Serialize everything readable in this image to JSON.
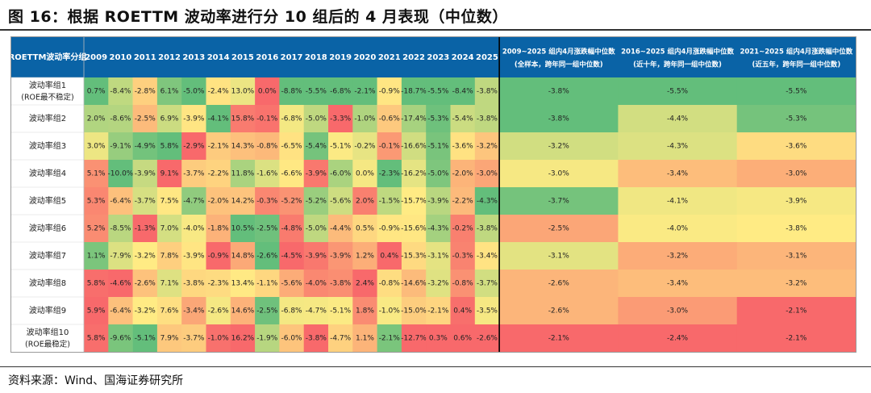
{
  "title": "图 16：根据 ROETTM 波动率进行分 10 组后的 4 月表现（中位数）",
  "source": "资料来源：Wind、国海证券研究所",
  "chart_data": {
    "type": "heatmap",
    "corner_label": "ROETTM波动率分组",
    "years": [
      "2009",
      "2010",
      "2011",
      "2012",
      "2013",
      "2014",
      "2015",
      "2016",
      "2017",
      "2018",
      "2019",
      "2020",
      "2021",
      "2022",
      "2023",
      "2024",
      "2025"
    ],
    "summary_headers": [
      {
        "line1": "2009~2025 组内4月涨跌幅中位数",
        "line2": "(全样本，跨年同一组中位数)"
      },
      {
        "line1": "2016~2025 组内4月涨跌幅中位数",
        "line2": "(近十年，跨年同一组中位数)"
      },
      {
        "line1": "2021~2025 组内4月涨跌幅中位数",
        "line2": "(近五年，跨年同一组中位数)"
      }
    ],
    "rows": [
      {
        "label": "波动率组1",
        "sublabel": "(ROE最不稳定)",
        "values": [
          "0.7%",
          "-8.4%",
          "-2.8%",
          "6.1%",
          "-5.0%",
          "-2.4%",
          "13.0%",
          "0.0%",
          "-8.8%",
          "-5.5%",
          "-6.8%",
          "-2.1%",
          "-0.9%",
          "-18.7%",
          "-5.5%",
          "-8.4%",
          "-3.8%"
        ],
        "summary": [
          "-3.8%",
          "-5.5%",
          "-5.5%"
        ]
      },
      {
        "label": "波动率组2",
        "sublabel": "",
        "values": [
          "2.0%",
          "-8.6%",
          "-2.5%",
          "6.9%",
          "-3.9%",
          "-4.1%",
          "15.8%",
          "-0.1%",
          "-6.8%",
          "-5.0%",
          "-3.3%",
          "-1.0%",
          "-0.6%",
          "-17.4%",
          "-5.3%",
          "-5.4%",
          "-3.8%"
        ],
        "summary": [
          "-3.8%",
          "-4.4%",
          "-5.3%"
        ]
      },
      {
        "label": "波动率组3",
        "sublabel": "",
        "values": [
          "3.0%",
          "-9.1%",
          "-4.9%",
          "5.8%",
          "-2.9%",
          "-2.1%",
          "14.3%",
          "-0.8%",
          "-6.5%",
          "-5.4%",
          "-5.1%",
          "-0.2%",
          "-0.1%",
          "-16.6%",
          "-5.1%",
          "-3.6%",
          "-3.2%"
        ],
        "summary": [
          "-3.2%",
          "-4.3%",
          "-3.6%"
        ]
      },
      {
        "label": "波动率组4",
        "sublabel": "",
        "values": [
          "5.1%",
          "-10.0%",
          "-3.9%",
          "9.1%",
          "-3.7%",
          "-2.2%",
          "11.8%",
          "-1.6%",
          "-6.6%",
          "-3.9%",
          "-6.0%",
          "0.0%",
          "-2.3%",
          "-16.2%",
          "-5.0%",
          "-2.0%",
          "-3.0%"
        ],
        "summary": [
          "-3.0%",
          "-3.4%",
          "-3.0%"
        ]
      },
      {
        "label": "波动率组5",
        "sublabel": "",
        "values": [
          "5.3%",
          "-6.4%",
          "-3.7%",
          "7.5%",
          "-4.7%",
          "-2.0%",
          "14.2%",
          "-0.3%",
          "-5.2%",
          "-5.2%",
          "-5.6%",
          "2.0%",
          "-1.5%",
          "-15.7%",
          "-3.9%",
          "-2.2%",
          "-4.3%"
        ],
        "summary": [
          "-3.7%",
          "-4.1%",
          "-3.9%"
        ]
      },
      {
        "label": "波动率组6",
        "sublabel": "",
        "values": [
          "5.2%",
          "-8.5%",
          "-1.3%",
          "7.0%",
          "-4.0%",
          "-1.8%",
          "10.5%",
          "-2.5%",
          "-4.8%",
          "-5.0%",
          "-4.4%",
          "0.5%",
          "-0.9%",
          "-15.6%",
          "-4.3%",
          "-0.2%",
          "-3.8%"
        ],
        "summary": [
          "-2.5%",
          "-4.0%",
          "-3.8%"
        ]
      },
      {
        "label": "波动率组7",
        "sublabel": "",
        "values": [
          "1.1%",
          "-7.9%",
          "-3.2%",
          "7.8%",
          "-3.9%",
          "-0.9%",
          "14.8%",
          "-2.6%",
          "-4.5%",
          "-3.9%",
          "-3.9%",
          "1.2%",
          "0.4%",
          "-15.3%",
          "-3.1%",
          "-0.3%",
          "-3.4%"
        ],
        "summary": [
          "-3.1%",
          "-3.2%",
          "-3.1%"
        ]
      },
      {
        "label": "波动率组8",
        "sublabel": "",
        "values": [
          "5.8%",
          "-4.6%",
          "-2.6%",
          "7.1%",
          "-3.8%",
          "-2.3%",
          "13.4%",
          "-1.1%",
          "-5.6%",
          "-4.0%",
          "-3.8%",
          "2.4%",
          "-0.8%",
          "-14.6%",
          "-3.2%",
          "-0.8%",
          "-3.7%"
        ],
        "summary": [
          "-2.6%",
          "-3.4%",
          "-3.2%"
        ]
      },
      {
        "label": "波动率组9",
        "sublabel": "",
        "values": [
          "5.9%",
          "-6.4%",
          "-3.2%",
          "7.6%",
          "-3.4%",
          "-2.6%",
          "14.6%",
          "-2.5%",
          "-6.8%",
          "-4.7%",
          "-5.1%",
          "1.8%",
          "-1.0%",
          "-15.0%",
          "-2.1%",
          "0.4%",
          "-3.5%"
        ],
        "summary": [
          "-2.6%",
          "-3.0%",
          "-2.1%"
        ]
      },
      {
        "label": "波动率组10",
        "sublabel": "(ROE最稳定)",
        "values": [
          "5.8%",
          "-9.6%",
          "-5.1%",
          "7.9%",
          "-3.7%",
          "-1.0%",
          "16.2%",
          "-1.9%",
          "-6.0%",
          "-3.8%",
          "-4.7%",
          "1.1%",
          "-2.1%",
          "-12.7%",
          "0.3%",
          "0.6%",
          "-2.6%"
        ],
        "summary": [
          "-2.1%",
          "-2.4%",
          "-2.1%"
        ]
      }
    ],
    "colors": {
      "header_bg": "#0a63a6",
      "header_text": "#ffffff",
      "high": "#f8696b",
      "mid": "#ffeb84",
      "low": "#63be7b"
    }
  }
}
